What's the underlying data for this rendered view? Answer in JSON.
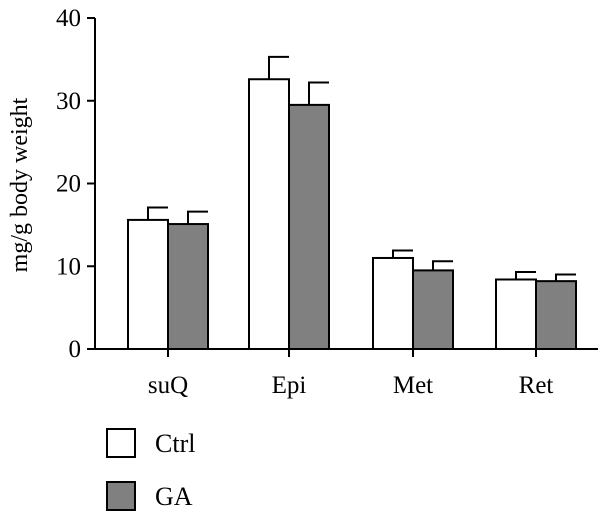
{
  "chart_data": {
    "type": "bar",
    "title": "",
    "xlabel": "",
    "ylabel": "mg/g body weight",
    "ylim": [
      0,
      40
    ],
    "yticks": [
      0,
      10,
      20,
      30,
      40
    ],
    "categories": [
      "suQ",
      "Epi",
      "Met",
      "Ret"
    ],
    "series": [
      {
        "name": "Ctrl",
        "color": "#ffffff",
        "values": [
          15.6,
          32.6,
          11.0,
          8.4
        ],
        "errors": [
          1.5,
          2.7,
          0.9,
          0.9
        ]
      },
      {
        "name": "GA",
        "color": "#808080",
        "values": [
          15.1,
          29.5,
          9.5,
          8.2
        ],
        "errors": [
          1.5,
          2.7,
          1.1,
          0.8
        ]
      }
    ],
    "error_bars": true,
    "grid": false,
    "legend_position": "bottom-left"
  }
}
